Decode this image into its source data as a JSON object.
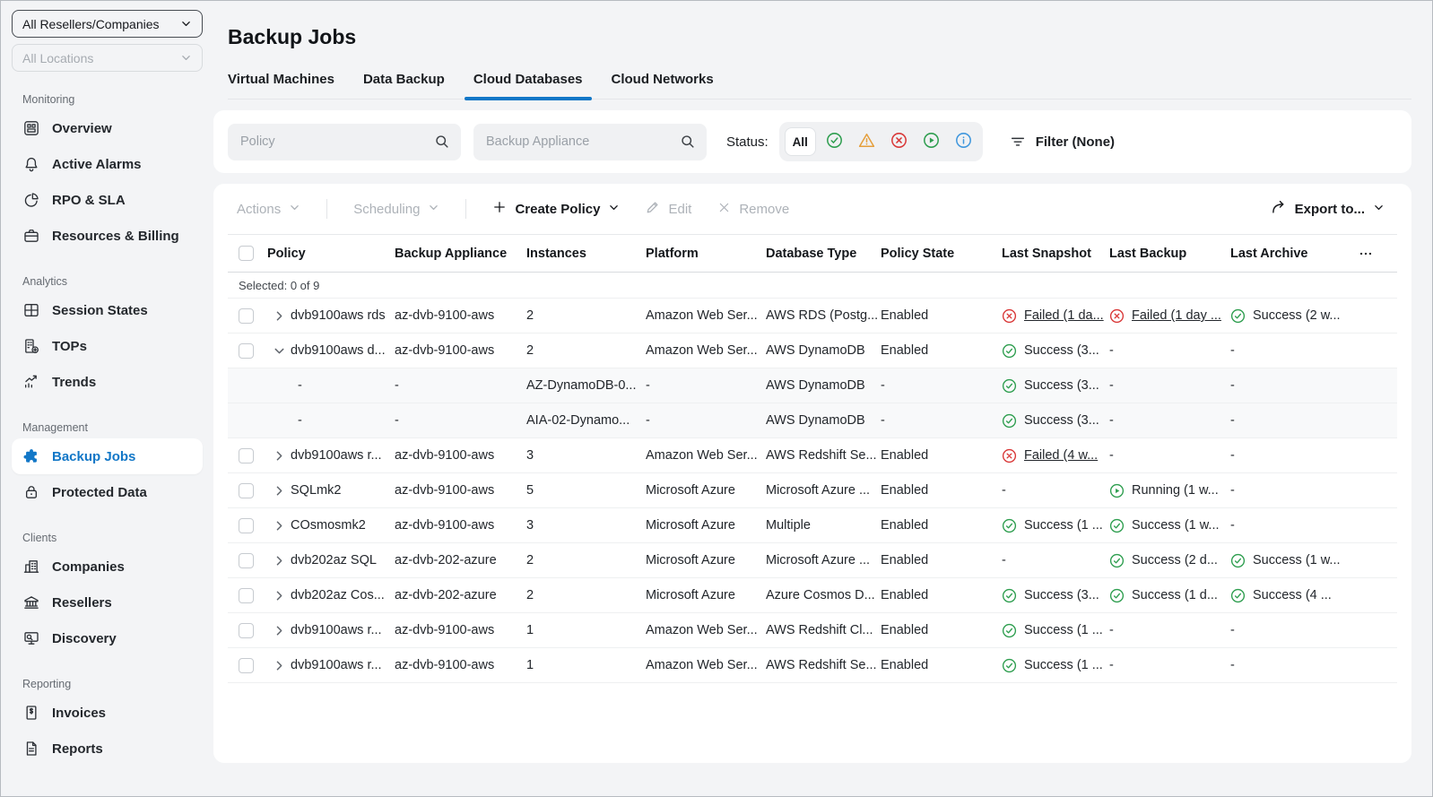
{
  "colors": {
    "accent": "#1277c7",
    "success": "#2e9e4f",
    "error": "#d93838",
    "warning": "#e59f3c",
    "info": "#3f97dd"
  },
  "global_filters": {
    "resellers_value": "All Resellers/Companies",
    "locations_value": "All Locations"
  },
  "sidebar": {
    "sections": [
      {
        "label": "Monitoring",
        "items": [
          {
            "label": "Overview",
            "icon": "overview-icon",
            "active": false
          },
          {
            "label": "Active Alarms",
            "icon": "bell-icon",
            "active": false
          },
          {
            "label": "RPO & SLA",
            "icon": "pie-chart-icon",
            "active": false
          },
          {
            "label": "Resources & Billing",
            "icon": "wallet-icon",
            "active": false
          }
        ]
      },
      {
        "label": "Analytics",
        "items": [
          {
            "label": "Session States",
            "icon": "grid-icon",
            "active": false
          },
          {
            "label": "TOPs",
            "icon": "building-plus-icon",
            "active": false
          },
          {
            "label": "Trends",
            "icon": "trends-icon",
            "active": false
          }
        ]
      },
      {
        "label": "Management",
        "items": [
          {
            "label": "Backup Jobs",
            "icon": "puzzle-icon",
            "active": true
          },
          {
            "label": "Protected Data",
            "icon": "lock-icon",
            "active": false
          }
        ]
      },
      {
        "label": "Clients",
        "items": [
          {
            "label": "Companies",
            "icon": "companies-icon",
            "active": false
          },
          {
            "label": "Resellers",
            "icon": "bank-icon",
            "active": false
          },
          {
            "label": "Discovery",
            "icon": "discovery-icon",
            "active": false
          }
        ]
      },
      {
        "label": "Reporting",
        "items": [
          {
            "label": "Invoices",
            "icon": "invoice-icon",
            "active": false
          },
          {
            "label": "Reports",
            "icon": "report-icon",
            "active": false
          }
        ]
      }
    ]
  },
  "header": {
    "title": "Backup Jobs",
    "tabs": [
      {
        "label": "Virtual Machines",
        "active": false
      },
      {
        "label": "Data Backup",
        "active": false
      },
      {
        "label": "Cloud Databases",
        "active": true
      },
      {
        "label": "Cloud Networks",
        "active": false
      }
    ]
  },
  "filters": {
    "policy_placeholder": "Policy",
    "appliance_placeholder": "Backup Appliance",
    "status_label": "Status:",
    "status_all_label": "All",
    "status_options": [
      {
        "type": "success"
      },
      {
        "type": "warning"
      },
      {
        "type": "failed"
      },
      {
        "type": "running"
      },
      {
        "type": "info"
      }
    ],
    "filter_button_label": "Filter (None)"
  },
  "toolbar": {
    "actions_label": "Actions",
    "scheduling_label": "Scheduling",
    "create_policy_label": "Create Policy",
    "edit_label": "Edit",
    "remove_label": "Remove",
    "export_label": "Export to..."
  },
  "table": {
    "selected_text": "Selected: 0 of 9",
    "columns": [
      "Policy",
      "Backup Appliance",
      "Instances",
      "Platform",
      "Database Type",
      "Policy State",
      "Last Snapshot",
      "Last Backup",
      "Last Archive"
    ],
    "rows": [
      {
        "kind": "parent",
        "expanded": false,
        "policy": "dvb9100aws rds",
        "appliance": "az-dvb-9100-aws",
        "instances": "2",
        "platform": "Amazon Web Ser...",
        "database_type": "AWS RDS (Postg...",
        "state": "Enabled",
        "last_snapshot": {
          "status": "failed",
          "text": "Failed (1 da...",
          "link": true
        },
        "last_backup": {
          "status": "failed",
          "text": "Failed (1 day ...",
          "link": true
        },
        "last_archive": {
          "status": "success",
          "text": "Success (2 w..."
        }
      },
      {
        "kind": "parent",
        "expanded": true,
        "policy": "dvb9100aws d...",
        "appliance": "az-dvb-9100-aws",
        "instances": "2",
        "platform": "Amazon Web Ser...",
        "database_type": "AWS DynamoDB",
        "state": "Enabled",
        "last_snapshot": {
          "status": "success",
          "text": "Success (3..."
        },
        "last_backup": "-",
        "last_archive": "-"
      },
      {
        "kind": "child",
        "policy": "-",
        "appliance": "-",
        "instances": "AZ-DynamoDB-0...",
        "platform": "-",
        "database_type": "AWS DynamoDB",
        "state": "-",
        "last_snapshot": {
          "status": "success",
          "text": "Success (3..."
        },
        "last_backup": "-",
        "last_archive": "-"
      },
      {
        "kind": "child",
        "policy": "-",
        "appliance": "-",
        "instances": "AIA-02-Dynamo...",
        "platform": "-",
        "database_type": "AWS DynamoDB",
        "state": "-",
        "last_snapshot": {
          "status": "success",
          "text": "Success (3..."
        },
        "last_backup": "-",
        "last_archive": "-"
      },
      {
        "kind": "parent",
        "expanded": false,
        "policy": "dvb9100aws r...",
        "appliance": "az-dvb-9100-aws",
        "instances": "3",
        "platform": "Amazon Web Ser...",
        "database_type": "AWS Redshift Se...",
        "state": "Enabled",
        "last_snapshot": {
          "status": "failed",
          "text": "Failed (4 w...",
          "link": true
        },
        "last_backup": "-",
        "last_archive": "-"
      },
      {
        "kind": "parent",
        "expanded": false,
        "policy": "SQLmk2",
        "appliance": "az-dvb-9100-aws",
        "instances": "5",
        "platform": "Microsoft Azure",
        "database_type": "Microsoft Azure ...",
        "state": "Enabled",
        "last_snapshot": "-",
        "last_backup": {
          "status": "running",
          "text": "Running (1 w..."
        },
        "last_archive": "-"
      },
      {
        "kind": "parent",
        "expanded": false,
        "policy": "COsmosmk2",
        "appliance": "az-dvb-9100-aws",
        "instances": "3",
        "platform": "Microsoft Azure",
        "database_type": "Multiple",
        "state": "Enabled",
        "last_snapshot": {
          "status": "success",
          "text": "Success (1 ..."
        },
        "last_backup": {
          "status": "success",
          "text": "Success (1 w..."
        },
        "last_archive": "-"
      },
      {
        "kind": "parent",
        "expanded": false,
        "policy": "dvb202az SQL",
        "appliance": "az-dvb-202-azure",
        "instances": "2",
        "platform": "Microsoft Azure",
        "database_type": "Microsoft Azure ...",
        "state": "Enabled",
        "last_snapshot": "-",
        "last_backup": {
          "status": "success",
          "text": "Success (2 d..."
        },
        "last_archive": {
          "status": "success",
          "text": "Success (1 w..."
        }
      },
      {
        "kind": "parent",
        "expanded": false,
        "policy": "dvb202az Cos...",
        "appliance": "az-dvb-202-azure",
        "instances": "2",
        "platform": "Microsoft Azure",
        "database_type": "Azure Cosmos D...",
        "state": "Enabled",
        "last_snapshot": {
          "status": "success",
          "text": "Success (3..."
        },
        "last_backup": {
          "status": "success",
          "text": "Success (1 d..."
        },
        "last_archive": {
          "status": "success",
          "text": "Success (4 ..."
        }
      },
      {
        "kind": "parent",
        "expanded": false,
        "policy": "dvb9100aws r...",
        "appliance": "az-dvb-9100-aws",
        "instances": "1",
        "platform": "Amazon Web Ser...",
        "database_type": "AWS Redshift Cl...",
        "state": "Enabled",
        "last_snapshot": {
          "status": "success",
          "text": "Success (1 ..."
        },
        "last_backup": "-",
        "last_archive": "-"
      },
      {
        "kind": "parent",
        "expanded": false,
        "policy": "dvb9100aws r...",
        "appliance": "az-dvb-9100-aws",
        "instances": "1",
        "platform": "Amazon Web Ser...",
        "database_type": "AWS Redshift Se...",
        "state": "Enabled",
        "last_snapshot": {
          "status": "success",
          "text": "Success (1 ..."
        },
        "last_backup": "-",
        "last_archive": "-"
      }
    ]
  }
}
